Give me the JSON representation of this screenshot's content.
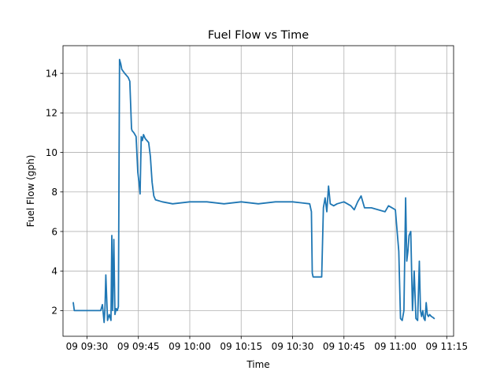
{
  "chart_data": {
    "type": "line",
    "title": "Fuel Flow vs Time",
    "xlabel": "Time",
    "ylabel": "Fuel Flow (gph)",
    "xlim": [
      "09:23",
      "11:17"
    ],
    "ylim": [
      0.7,
      15.4
    ],
    "grid": true,
    "x_ticks": [
      {
        "value": "09:30",
        "label": "09 09:30"
      },
      {
        "value": "09:45",
        "label": "09 09:45"
      },
      {
        "value": "10:00",
        "label": "09 10:00"
      },
      {
        "value": "10:15",
        "label": "09 10:15"
      },
      {
        "value": "10:30",
        "label": "09 10:30"
      },
      {
        "value": "10:45",
        "label": "09 10:45"
      },
      {
        "value": "11:00",
        "label": "09 11:00"
      },
      {
        "value": "11:15",
        "label": "09 11:15"
      }
    ],
    "y_ticks": [
      2,
      4,
      6,
      8,
      10,
      12,
      14
    ],
    "series": [
      {
        "color": "#1f77b4",
        "x": [
          "09:26:00",
          "09:26:18",
          "09:27:00",
          "09:30:00",
          "09:34:00",
          "09:34:30",
          "09:35:00",
          "09:35:15",
          "09:35:30",
          "09:36:00",
          "09:36:30",
          "09:37:00",
          "09:37:15",
          "09:37:30",
          "09:37:50",
          "09:38:10",
          "09:38:30",
          "09:38:50",
          "09:39:10",
          "09:39:30",
          "09:39:40",
          "09:39:50",
          "09:40:10",
          "09:41:00",
          "09:42:00",
          "09:42:30",
          "09:43:00",
          "09:43:10",
          "09:43:40",
          "09:44:20",
          "09:44:50",
          "09:45:10",
          "09:45:30",
          "09:45:50",
          "09:46:10",
          "09:46:30",
          "09:47:00",
          "09:48:00",
          "09:48:30",
          "09:49:00",
          "09:49:30",
          "09:50:00",
          "09:52:00",
          "09:55:00",
          "10:00:00",
          "10:05:00",
          "10:10:00",
          "10:15:00",
          "10:20:00",
          "10:25:00",
          "10:30:00",
          "10:35:00",
          "10:35:30",
          "10:35:45",
          "10:36:00",
          "10:38:30",
          "10:39:00",
          "10:39:30",
          "10:40:00",
          "10:40:30",
          "10:41:00",
          "10:42:00",
          "10:43:00",
          "10:45:00",
          "10:46:00",
          "10:47:00",
          "10:48:00",
          "10:49:00",
          "10:50:00",
          "10:51:00",
          "10:53:00",
          "10:55:00",
          "10:57:00",
          "10:58:00",
          "10:59:00",
          "11:00:00",
          "11:01:00",
          "11:01:30",
          "11:02:00",
          "11:02:30",
          "11:03:00",
          "11:03:20",
          "11:03:40",
          "11:04:00",
          "11:04:30",
          "11:05:00",
          "11:05:30",
          "11:06:00",
          "11:06:30",
          "11:07:00",
          "11:07:20",
          "11:07:40",
          "11:08:00",
          "11:08:20",
          "11:08:40",
          "11:09:00",
          "11:09:20",
          "11:09:40",
          "11:10:00",
          "11:10:30",
          "11:11:00",
          "11:11:20"
        ],
        "y": [
          2.4,
          2.0,
          2.0,
          2.0,
          2.0,
          2.3,
          1.4,
          2.1,
          3.8,
          1.5,
          1.8,
          1.5,
          5.8,
          2.0,
          5.6,
          1.8,
          2.1,
          2.0,
          2.2,
          14.7,
          14.6,
          14.5,
          14.2,
          14.0,
          13.8,
          13.6,
          11.2,
          11.1,
          11.0,
          10.8,
          9.0,
          8.5,
          7.9,
          10.8,
          10.6,
          10.9,
          10.7,
          10.5,
          9.8,
          8.5,
          7.8,
          7.6,
          7.5,
          7.4,
          7.5,
          7.5,
          7.4,
          7.5,
          7.4,
          7.5,
          7.5,
          7.4,
          7.0,
          3.9,
          3.7,
          3.7,
          7.2,
          7.7,
          7.0,
          8.3,
          7.4,
          7.3,
          7.4,
          7.5,
          7.4,
          7.3,
          7.1,
          7.5,
          7.8,
          7.2,
          7.2,
          7.1,
          7.0,
          7.3,
          7.2,
          7.1,
          5.0,
          1.6,
          1.5,
          2.0,
          7.7,
          4.5,
          5.0,
          5.8,
          6.0,
          2.0,
          4.0,
          1.6,
          1.5,
          4.5,
          2.0,
          1.7,
          2.0,
          1.6,
          1.5,
          2.4,
          1.8,
          1.7,
          1.8,
          1.7,
          1.65,
          1.6
        ]
      }
    ]
  }
}
